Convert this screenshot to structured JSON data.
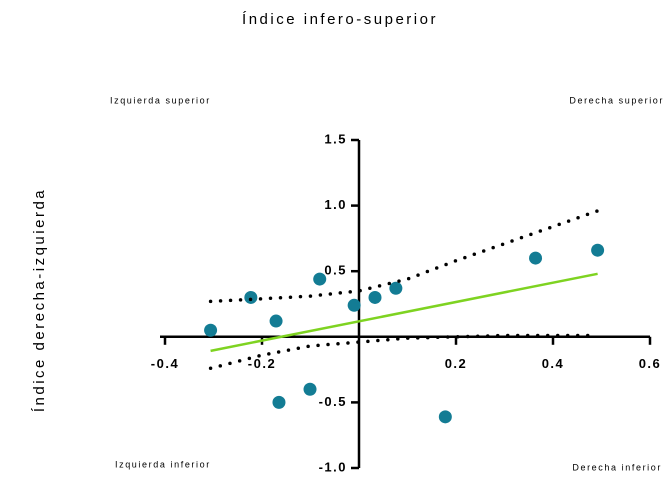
{
  "chart_data": {
    "type": "scatter",
    "title": "Índice infero-superior",
    "y_label": "Índice derecha-izquierda",
    "annotations": [
      "Izquierda superior",
      "Derecha superior",
      "Izquierda inferior",
      "Derecha inferior"
    ],
    "xlim": [
      -0.4,
      0.6
    ],
    "ylim": [
      -1.0,
      1.5
    ],
    "xticks": [
      -0.4,
      -0.2,
      0.2,
      0.4,
      0.6
    ],
    "yticks": [
      {
        "value": -1.0,
        "label": "-1.0"
      },
      -0.5,
      0.5,
      {
        "value": 1.0,
        "label": "1.0"
      },
      1.5
    ],
    "series": [
      {
        "style": "points",
        "color": "#137c94",
        "x": [
          -0.306,
          -0.223,
          -0.171,
          -0.081,
          -0.01,
          0.033,
          0.076,
          0.364,
          0.492,
          -0.165,
          -0.101,
          0.178
        ],
        "values": [
          0.05,
          0.3,
          0.12,
          0.44,
          0.24,
          0.3,
          0.37,
          0.6,
          0.66,
          -0.5,
          -0.4,
          -0.61
        ]
      },
      {
        "style": "line",
        "color": "#7ed321",
        "x": [
          -0.306,
          0.492
        ],
        "values": [
          -0.107,
          0.48
        ]
      },
      {
        "style": "dotted",
        "color": "#000000",
        "x": [
          -0.306,
          -0.2,
          -0.1,
          0,
          0.1,
          0.2,
          0.3,
          0.4,
          0.492
        ],
        "values": [
          0.27,
          0.29,
          0.31,
          0.35,
          0.44,
          0.58,
          0.71,
          0.84,
          0.96
        ]
      },
      {
        "style": "dotted",
        "color": "#000000",
        "x": [
          -0.306,
          -0.2,
          -0.1,
          0,
          0.1,
          0.2,
          0.3,
          0.4,
          0.492
        ],
        "values": [
          -0.24,
          -0.14,
          -0.07,
          -0.04,
          -0.01,
          0.0,
          0.01,
          0.01,
          0.01
        ]
      }
    ]
  }
}
